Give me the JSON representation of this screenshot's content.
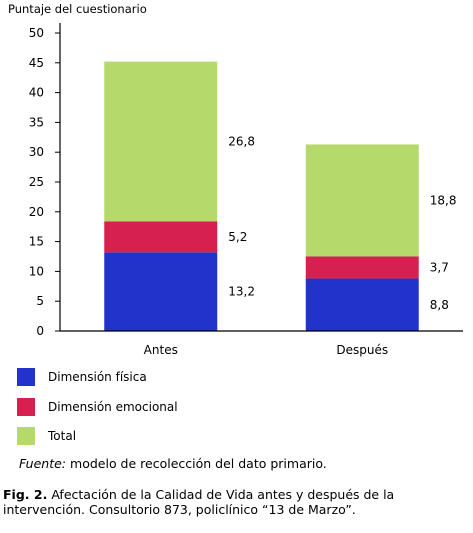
{
  "chart_data": {
    "type": "bar",
    "stacked": true,
    "ylabel": "Puntaje del cuestionario",
    "xlabel": "",
    "ylim": [
      0,
      50
    ],
    "yticks": [
      0,
      5,
      10,
      15,
      20,
      25,
      30,
      35,
      40,
      45,
      50
    ],
    "categories": [
      "Antes",
      "Después"
    ],
    "series": [
      {
        "name": "Dimensión física",
        "values": [
          13.2,
          8.8
        ],
        "labels": [
          "13,2",
          "8,8"
        ],
        "color": "#2233cc"
      },
      {
        "name": "Dimensión emocional",
        "values": [
          5.2,
          3.7
        ],
        "labels": [
          "5,2",
          "3,7"
        ],
        "color": "#d62050"
      },
      {
        "name": "Total",
        "values": [
          26.8,
          18.8
        ],
        "labels": [
          "26,8",
          "18,8"
        ],
        "color": "#b5d96b"
      }
    ],
    "grid": false,
    "legend_position": "bottom-left"
  },
  "source_note": {
    "label": "Fuente:",
    "text": "modelo de recolección del dato primario."
  },
  "caption": {
    "label": "Fig. 2.",
    "text": "Afectación de la Calidad de Vida antes y  después de la intervención. Consultorio 873, policlínico “13 de Marzo”."
  }
}
